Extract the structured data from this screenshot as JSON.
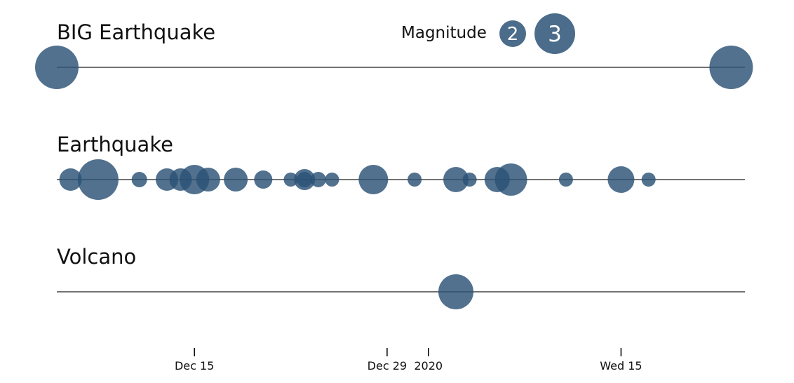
{
  "colors": {
    "bubble": "#2b5275",
    "baseline": "#444444",
    "text": "#111111"
  },
  "chart_data": {
    "type": "scatter",
    "encoding": "bubble timeline by event type",
    "xlim": [
      "2019-12-05",
      "2020-01-24"
    ],
    "size_scale": "magnitude",
    "legend": {
      "title": "Magnitude",
      "items": [
        {
          "label": "2",
          "magnitude": 2
        },
        {
          "label": "3",
          "magnitude": 3
        }
      ],
      "position": "top"
    },
    "x_ticks": [
      {
        "date": "2019-12-15",
        "label": "Dec 15"
      },
      {
        "date": "2019-12-29",
        "label": "Dec 29"
      },
      {
        "date": "2020-01-01",
        "label": "2020"
      },
      {
        "date": "2020-01-15",
        "label": "Wed 15"
      }
    ],
    "series": [
      {
        "name": "BIG Earthquake",
        "points": [
          {
            "date": "2019-12-05",
            "magnitude": 3.1
          },
          {
            "date": "2020-01-23",
            "magnitude": 3.1
          }
        ]
      },
      {
        "name": "Earthquake",
        "points": [
          {
            "date": "2019-12-06",
            "magnitude": 1.6
          },
          {
            "date": "2019-12-08",
            "magnitude": 2.9
          },
          {
            "date": "2019-12-11",
            "magnitude": 1.1
          },
          {
            "date": "2019-12-13",
            "magnitude": 1.6
          },
          {
            "date": "2019-12-14",
            "magnitude": 1.6
          },
          {
            "date": "2019-12-15",
            "magnitude": 2.1
          },
          {
            "date": "2019-12-16",
            "magnitude": 1.7
          },
          {
            "date": "2019-12-18",
            "magnitude": 1.7
          },
          {
            "date": "2019-12-20",
            "magnitude": 1.3
          },
          {
            "date": "2019-12-22",
            "magnitude": 1.0
          },
          {
            "date": "2019-12-23",
            "magnitude": 1.5
          },
          {
            "date": "2019-12-23",
            "magnitude": 1.1
          },
          {
            "date": "2019-12-24",
            "magnitude": 1.1
          },
          {
            "date": "2019-12-25",
            "magnitude": 1.0
          },
          {
            "date": "2019-12-28",
            "magnitude": 2.1
          },
          {
            "date": "2019-12-31",
            "magnitude": 1.0
          },
          {
            "date": "2020-01-03",
            "magnitude": 1.8
          },
          {
            "date": "2020-01-04",
            "magnitude": 1.0
          },
          {
            "date": "2020-01-06",
            "magnitude": 1.8
          },
          {
            "date": "2020-01-07",
            "magnitude": 2.3
          },
          {
            "date": "2020-01-11",
            "magnitude": 1.0
          },
          {
            "date": "2020-01-15",
            "magnitude": 1.9
          },
          {
            "date": "2020-01-17",
            "magnitude": 1.0
          }
        ]
      },
      {
        "name": "Volcano",
        "points": [
          {
            "date": "2020-01-03",
            "magnitude": 2.5
          }
        ]
      }
    ]
  }
}
